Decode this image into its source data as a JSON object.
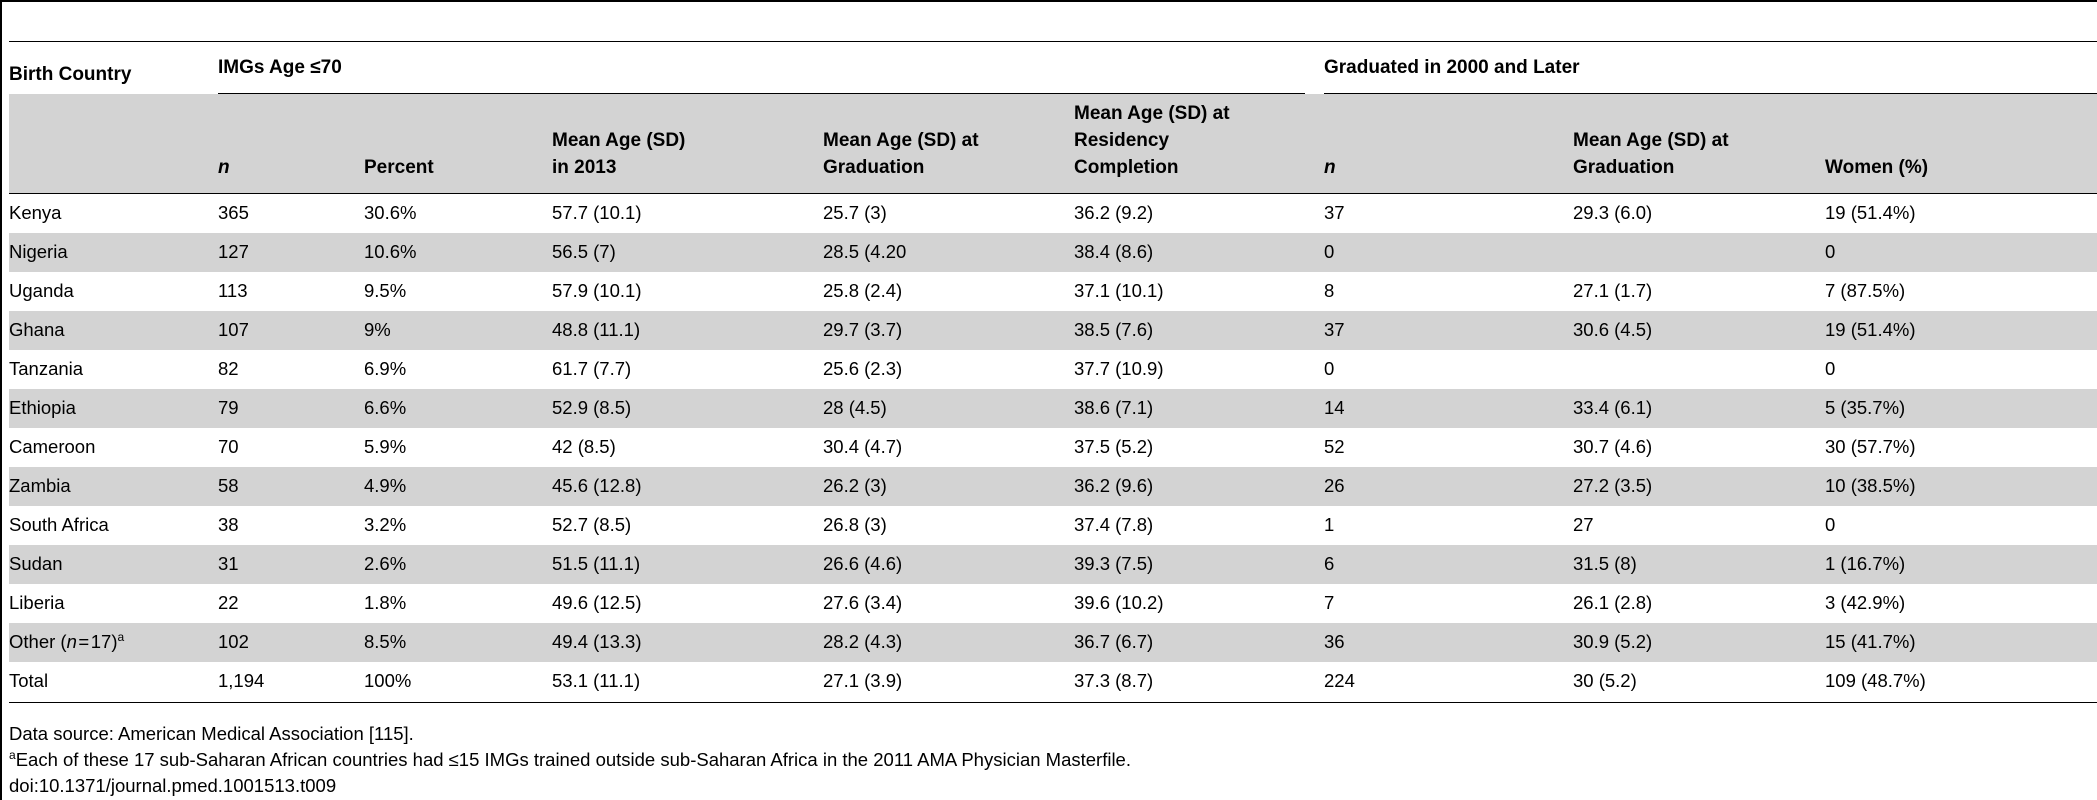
{
  "table": {
    "header": {
      "birth_country": "Birth Country",
      "group1": "IMGs Age ≤70",
      "group2": "Graduated in 2000 and Later",
      "columns": [
        [
          "n"
        ],
        [
          "Percent"
        ],
        [
          "Mean Age (SD)",
          "in 2013"
        ],
        [
          "Mean Age (SD) at",
          "Graduation"
        ],
        [
          "Mean Age (SD) at",
          "Residency",
          "Completion"
        ],
        [
          "n"
        ],
        [
          "Mean Age (SD) at",
          "Graduation"
        ],
        [
          "Women (%)"
        ]
      ]
    },
    "rows": [
      [
        "Kenya",
        "365",
        "30.6%",
        "57.7 (10.1)",
        "25.7 (3)",
        "36.2 (9.2)",
        "37",
        "29.3 (6.0)",
        "19 (51.4%)"
      ],
      [
        "Nigeria",
        "127",
        "10.6%",
        "56.5 (7)",
        "28.5 (4.20",
        "38.4 (8.6)",
        "0",
        "",
        "0"
      ],
      [
        "Uganda",
        "113",
        "9.5%",
        "57.9 (10.1)",
        "25.8 (2.4)",
        "37.1 (10.1)",
        "8",
        "27.1 (1.7)",
        "7 (87.5%)"
      ],
      [
        "Ghana",
        "107",
        "9%",
        "48.8 (11.1)",
        "29.7 (3.7)",
        "38.5 (7.6)",
        "37",
        "30.6 (4.5)",
        "19 (51.4%)"
      ],
      [
        "Tanzania",
        "82",
        "6.9%",
        "61.7 (7.7)",
        "25.6 (2.3)",
        "37.7 (10.9)",
        "0",
        "",
        "0"
      ],
      [
        "Ethiopia",
        "79",
        "6.6%",
        "52.9 (8.5)",
        "28 (4.5)",
        "38.6 (7.1)",
        "14",
        "33.4 (6.1)",
        "5 (35.7%)"
      ],
      [
        "Cameroon",
        "70",
        "5.9%",
        "42 (8.5)",
        "30.4 (4.7)",
        "37.5 (5.2)",
        "52",
        "30.7 (4.6)",
        "30 (57.7%)"
      ],
      [
        "Zambia",
        "58",
        "4.9%",
        "45.6 (12.8)",
        "26.2 (3)",
        "36.2 (9.6)",
        "26",
        "27.2 (3.5)",
        "10 (38.5%)"
      ],
      [
        "South Africa",
        "38",
        "3.2%",
        "52.7 (8.5)",
        "26.8 (3)",
        "37.4 (7.8)",
        "1",
        "27",
        "0"
      ],
      [
        "Sudan",
        "31",
        "2.6%",
        "51.5 (11.1)",
        "26.6 (4.6)",
        "39.3 (7.5)",
        "6",
        "31.5 (8)",
        "1 (16.7%)"
      ],
      [
        "Liberia",
        "22",
        "1.8%",
        "49.6 (12.5)",
        "27.6 (3.4)",
        "39.6 (10.2)",
        "7",
        "26.1 (2.8)",
        "3 (42.9%)"
      ],
      [
        "Other (n = 17)",
        "102",
        "8.5%",
        "49.4 (13.3)",
        "28.2 (4.3)",
        "36.7 (6.7)",
        "36",
        "30.9 (5.2)",
        "15 (41.7%)"
      ],
      [
        "Total",
        "1,194",
        "100%",
        "53.1 (11.1)",
        "27.1 (3.9)",
        "37.3 (8.7)",
        "224",
        "30 (5.2)",
        "109 (48.7%)"
      ]
    ],
    "other_row": {
      "prefix": "Other (",
      "n": "n",
      "rest": " = 17)",
      "sup": "a"
    }
  },
  "footnotes": {
    "source": "Data source: American Medical Association [115].",
    "note_marker": "a",
    "note": "Each of these 17 sub-Saharan African countries had ≤15 IMGs trained outside sub-Saharan Africa in the 2011 AMA Physician Masterfile.",
    "doi": "doi:10.1371/journal.pmed.1001513.t009"
  },
  "colors": {
    "band": "#d3d3d3",
    "rule": "#000000"
  }
}
